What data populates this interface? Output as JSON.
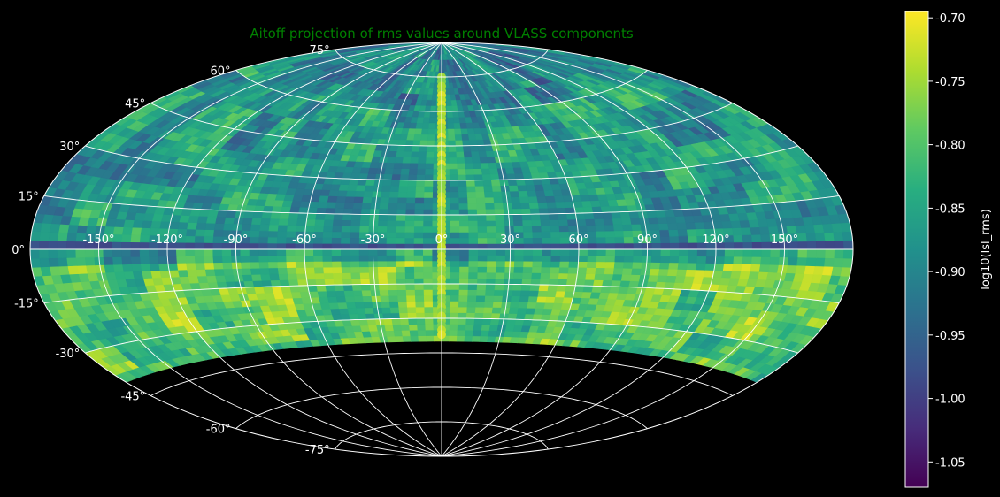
{
  "chart_data": {
    "type": "heatmap",
    "projection": "aitoff",
    "title": "Aitoff projection of rms values around VLASS components",
    "lon_ticks": [
      "-150°",
      "-120°",
      "-90°",
      "-60°",
      "-30°",
      "0°",
      "30°",
      "60°",
      "90°",
      "120°",
      "150°"
    ],
    "lat_ticks": [
      "75°",
      "60°",
      "45°",
      "30°",
      "15°",
      "0°",
      "-15°",
      "-30°",
      "-45°",
      "-60°",
      "-75°"
    ],
    "lon_range": [
      -180,
      180
    ],
    "lat_range": [
      -90,
      90
    ],
    "data_dec_range": [
      -40,
      90
    ],
    "grid": true,
    "colormap": "viridis",
    "colorbar": {
      "label": "log10(lsl_rms)",
      "range": [
        -1.07,
        -0.695
      ],
      "ticks": [
        "-0.70",
        "-0.75",
        "-0.80",
        "-0.85",
        "-0.90",
        "-0.95",
        "-1.00",
        "-1.05"
      ],
      "tick_values": [
        -0.7,
        -0.75,
        -0.8,
        -0.85,
        -0.9,
        -0.95,
        -1.0,
        -1.05
      ]
    },
    "colors": {
      "background": "#000000",
      "grid": "#ffffff",
      "title": "#008000",
      "text": "#ffffff"
    }
  }
}
